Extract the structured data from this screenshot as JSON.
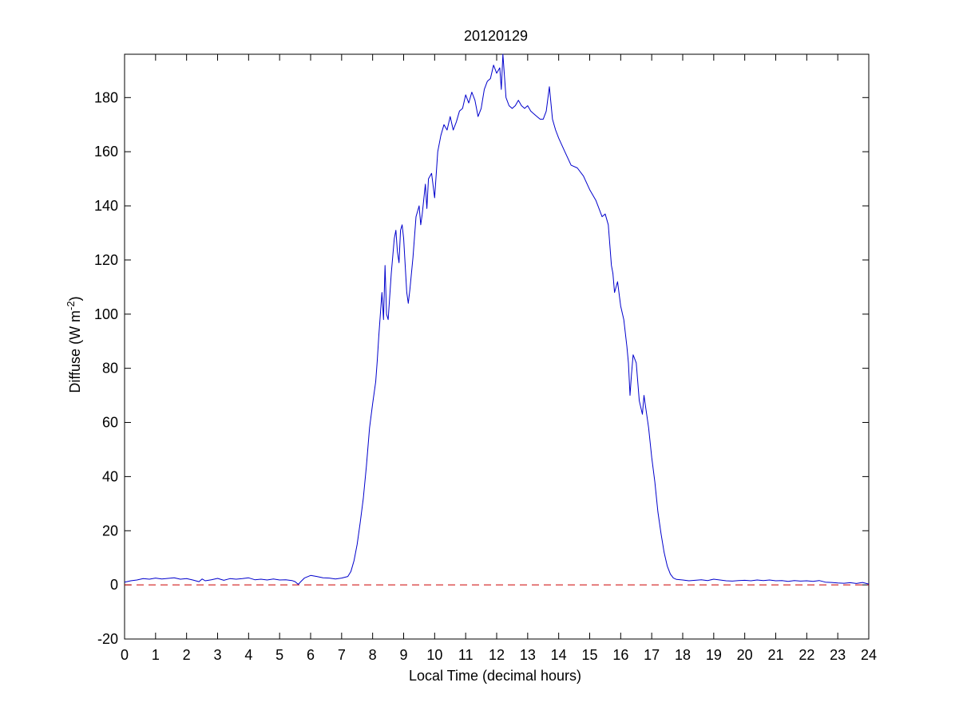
{
  "chart_data": {
    "type": "line",
    "title": "20120129",
    "xlabel": "Local Time (decimal hours)",
    "ylabel": {
      "main": "Diffuse (W m",
      "superscript": "-2",
      "close": ")"
    },
    "xlim": [
      0,
      24
    ],
    "ylim": [
      -20,
      196
    ],
    "xticks": [
      0,
      1,
      2,
      3,
      4,
      5,
      6,
      7,
      8,
      9,
      10,
      11,
      12,
      13,
      14,
      15,
      16,
      17,
      18,
      19,
      20,
      21,
      22,
      23,
      24
    ],
    "xtick_labels": [
      "0",
      "1",
      "2",
      "3",
      "4",
      "5",
      "6",
      "7",
      "8",
      "9",
      "10",
      "11",
      "12",
      "13",
      "14",
      "15",
      "16",
      "17",
      "18",
      "19",
      "20",
      "21",
      "22",
      "23",
      "24"
    ],
    "yticks": [
      -20,
      0,
      20,
      40,
      60,
      80,
      100,
      120,
      140,
      160,
      180
    ],
    "ytick_labels": [
      "-20",
      "0",
      "20",
      "40",
      "60",
      "80",
      "100",
      "120",
      "140",
      "160",
      "180"
    ],
    "grid": false,
    "colors": {
      "series": "#0000cc",
      "reference": "#cc0000"
    },
    "series": [
      {
        "points": [
          [
            0,
            1
          ],
          [
            0.2,
            1.5
          ],
          [
            0.4,
            1.8
          ],
          [
            0.6,
            2.3
          ],
          [
            0.8,
            2.1
          ],
          [
            1,
            2.5
          ],
          [
            1.2,
            2.2
          ],
          [
            1.4,
            2.4
          ],
          [
            1.6,
            2.6
          ],
          [
            1.8,
            2.1
          ],
          [
            2,
            2.3
          ],
          [
            2.2,
            1.8
          ],
          [
            2.4,
            1.2
          ],
          [
            2.5,
            2.2
          ],
          [
            2.6,
            1.5
          ],
          [
            2.8,
            1.9
          ],
          [
            3,
            2.4
          ],
          [
            3.2,
            1.7
          ],
          [
            3.4,
            2.3
          ],
          [
            3.6,
            2.1
          ],
          [
            3.8,
            2.3
          ],
          [
            4,
            2.6
          ],
          [
            4.2,
            1.9
          ],
          [
            4.4,
            2.1
          ],
          [
            4.6,
            1.8
          ],
          [
            4.8,
            2.2
          ],
          [
            5,
            1.8
          ],
          [
            5.2,
            1.9
          ],
          [
            5.4,
            1.6
          ],
          [
            5.5,
            1.2
          ],
          [
            5.6,
            0.2
          ],
          [
            5.7,
            1.4
          ],
          [
            5.8,
            2.5
          ],
          [
            6,
            3.5
          ],
          [
            6.2,
            3.1
          ],
          [
            6.4,
            2.6
          ],
          [
            6.6,
            2.5
          ],
          [
            6.8,
            2.2
          ],
          [
            7,
            2.5
          ],
          [
            7.2,
            3.1
          ],
          [
            7.3,
            5
          ],
          [
            7.4,
            9
          ],
          [
            7.5,
            15
          ],
          [
            7.6,
            23
          ],
          [
            7.7,
            32
          ],
          [
            7.8,
            44
          ],
          [
            7.9,
            58
          ],
          [
            8,
            67
          ],
          [
            8.1,
            75
          ],
          [
            8.15,
            83
          ],
          [
            8.2,
            92
          ],
          [
            8.3,
            108
          ],
          [
            8.35,
            98
          ],
          [
            8.4,
            118
          ],
          [
            8.45,
            100
          ],
          [
            8.5,
            98
          ],
          [
            8.6,
            115
          ],
          [
            8.7,
            128
          ],
          [
            8.75,
            131
          ],
          [
            8.8,
            123
          ],
          [
            8.85,
            119
          ],
          [
            8.9,
            131
          ],
          [
            8.95,
            133
          ],
          [
            9,
            128
          ],
          [
            9.1,
            108
          ],
          [
            9.15,
            104
          ],
          [
            9.2,
            109
          ],
          [
            9.3,
            121
          ],
          [
            9.4,
            136
          ],
          [
            9.5,
            140
          ],
          [
            9.55,
            133
          ],
          [
            9.6,
            137
          ],
          [
            9.7,
            148
          ],
          [
            9.75,
            139
          ],
          [
            9.8,
            150
          ],
          [
            9.9,
            152
          ],
          [
            10,
            143
          ],
          [
            10.1,
            160
          ],
          [
            10.2,
            166
          ],
          [
            10.3,
            170
          ],
          [
            10.4,
            168
          ],
          [
            10.5,
            173
          ],
          [
            10.6,
            168
          ],
          [
            10.7,
            171
          ],
          [
            10.8,
            175
          ],
          [
            10.9,
            176
          ],
          [
            11,
            181
          ],
          [
            11.1,
            178
          ],
          [
            11.2,
            182
          ],
          [
            11.3,
            179
          ],
          [
            11.4,
            173
          ],
          [
            11.5,
            176
          ],
          [
            11.6,
            183
          ],
          [
            11.7,
            186
          ],
          [
            11.8,
            187
          ],
          [
            11.9,
            192
          ],
          [
            12,
            189
          ],
          [
            12.1,
            191
          ],
          [
            12.15,
            183
          ],
          [
            12.2,
            196
          ],
          [
            12.3,
            180
          ],
          [
            12.4,
            177
          ],
          [
            12.5,
            176
          ],
          [
            12.6,
            177
          ],
          [
            12.7,
            179
          ],
          [
            12.8,
            177
          ],
          [
            12.9,
            176
          ],
          [
            13,
            177
          ],
          [
            13.1,
            175
          ],
          [
            13.2,
            174
          ],
          [
            13.3,
            173
          ],
          [
            13.4,
            172
          ],
          [
            13.5,
            172
          ],
          [
            13.6,
            175
          ],
          [
            13.7,
            184
          ],
          [
            13.8,
            172
          ],
          [
            13.9,
            168
          ],
          [
            14,
            165
          ],
          [
            14.2,
            160
          ],
          [
            14.4,
            155
          ],
          [
            14.6,
            154
          ],
          [
            14.8,
            151
          ],
          [
            15,
            146
          ],
          [
            15.2,
            142
          ],
          [
            15.4,
            136
          ],
          [
            15.5,
            137
          ],
          [
            15.6,
            133
          ],
          [
            15.7,
            118
          ],
          [
            15.75,
            115
          ],
          [
            15.8,
            108
          ],
          [
            15.9,
            112
          ],
          [
            16,
            103
          ],
          [
            16.1,
            98
          ],
          [
            16.2,
            88
          ],
          [
            16.25,
            82
          ],
          [
            16.3,
            70
          ],
          [
            16.35,
            78
          ],
          [
            16.4,
            85
          ],
          [
            16.5,
            82
          ],
          [
            16.6,
            68
          ],
          [
            16.7,
            63
          ],
          [
            16.75,
            70
          ],
          [
            16.8,
            66
          ],
          [
            16.9,
            58
          ],
          [
            17,
            47
          ],
          [
            17.1,
            38
          ],
          [
            17.2,
            27
          ],
          [
            17.3,
            19
          ],
          [
            17.4,
            12
          ],
          [
            17.5,
            7
          ],
          [
            17.6,
            4
          ],
          [
            17.7,
            2.5
          ],
          [
            17.8,
            2
          ],
          [
            18,
            1.8
          ],
          [
            18.2,
            1.5
          ],
          [
            18.4,
            1.7
          ],
          [
            18.6,
            1.9
          ],
          [
            18.8,
            1.6
          ],
          [
            19,
            2.1
          ],
          [
            19.2,
            1.8
          ],
          [
            19.4,
            1.5
          ],
          [
            19.6,
            1.4
          ],
          [
            19.8,
            1.6
          ],
          [
            20,
            1.7
          ],
          [
            20.2,
            1.5
          ],
          [
            20.4,
            1.8
          ],
          [
            20.6,
            1.6
          ],
          [
            20.8,
            1.8
          ],
          [
            21,
            1.5
          ],
          [
            21.2,
            1.6
          ],
          [
            21.4,
            1.3
          ],
          [
            21.6,
            1.6
          ],
          [
            21.8,
            1.4
          ],
          [
            22,
            1.5
          ],
          [
            22.2,
            1.3
          ],
          [
            22.4,
            1.6
          ],
          [
            22.6,
            1
          ],
          [
            22.8,
            0.9
          ],
          [
            23,
            0.7
          ],
          [
            23.2,
            0.6
          ],
          [
            23.4,
            0.8
          ],
          [
            23.6,
            0.5
          ],
          [
            23.8,
            0.9
          ],
          [
            24,
            0.3
          ]
        ]
      }
    ],
    "reference_line": {
      "y": 0,
      "style": "dashed"
    }
  }
}
